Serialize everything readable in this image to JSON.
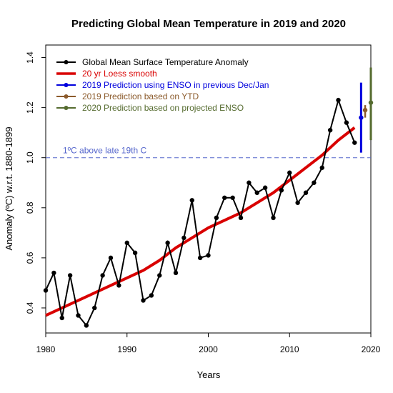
{
  "chart_data": {
    "type": "line",
    "title": "Predicting Global Mean Temperature in 2019 and 2020",
    "xlabel": "Years",
    "ylabel": "Anomaly (ºC) w.r.t. 1880-1899",
    "xlim": [
      1980,
      2020
    ],
    "ylim": [
      0.3,
      1.45
    ],
    "xticks": [
      "1980",
      "1990",
      "2000",
      "2010",
      "2020"
    ],
    "yticks": [
      "0.4",
      "0.6",
      "0.8",
      "1.0",
      "1.2",
      "1.4"
    ],
    "legend_position": "top-left",
    "threshold": {
      "value": 1.0,
      "label": "1ºC above late 19th C",
      "color": "#5566cc"
    },
    "series": [
      {
        "name": "Global Mean Surface Temperature Anomaly",
        "color": "#000000",
        "x": [
          1980,
          1981,
          1982,
          1983,
          1984,
          1985,
          1986,
          1987,
          1988,
          1989,
          1990,
          1991,
          1992,
          1993,
          1994,
          1995,
          1996,
          1997,
          1998,
          1999,
          2000,
          2001,
          2002,
          2003,
          2004,
          2005,
          2006,
          2007,
          2008,
          2009,
          2010,
          2011,
          2012,
          2013,
          2014,
          2015,
          2016,
          2017,
          2018
        ],
        "values": [
          0.47,
          0.54,
          0.36,
          0.53,
          0.37,
          0.33,
          0.4,
          0.53,
          0.6,
          0.49,
          0.66,
          0.62,
          0.43,
          0.45,
          0.53,
          0.66,
          0.54,
          0.68,
          0.83,
          0.6,
          0.61,
          0.76,
          0.84,
          0.84,
          0.76,
          0.9,
          0.86,
          0.88,
          0.76,
          0.87,
          0.94,
          0.82,
          0.86,
          0.9,
          0.96,
          1.11,
          1.23,
          1.14,
          1.06
        ]
      },
      {
        "name": "20 yr Loess smooth",
        "color": "#d90000",
        "x": [
          1980,
          1982,
          1984,
          1986,
          1988,
          1990,
          1992,
          1994,
          1996,
          1998,
          2000,
          2002,
          2004,
          2006,
          2008,
          2010,
          2012,
          2014,
          2016,
          2018
        ],
        "values": [
          0.37,
          0.4,
          0.43,
          0.46,
          0.49,
          0.52,
          0.55,
          0.59,
          0.64,
          0.68,
          0.72,
          0.75,
          0.78,
          0.82,
          0.86,
          0.91,
          0.96,
          1.01,
          1.07,
          1.12
        ]
      },
      {
        "name": "2019 Prediction using ENSO in previous Dec/Jan",
        "color": "#0000dd",
        "x": [
          2018.8
        ],
        "values": [
          1.16
        ],
        "low": [
          1.02
        ],
        "high": [
          1.3
        ]
      },
      {
        "name": "2019 Prediction based on YTD",
        "color": "#8b5a2b",
        "x": [
          2019.3
        ],
        "values": [
          1.19
        ],
        "low": [
          1.16
        ],
        "high": [
          1.21
        ]
      },
      {
        "name": "2020 Prediction based on projected ENSO",
        "color": "#556b2f",
        "x": [
          2020.0
        ],
        "values": [
          1.22
        ],
        "low": [
          1.07
        ],
        "high": [
          1.36
        ]
      }
    ]
  }
}
